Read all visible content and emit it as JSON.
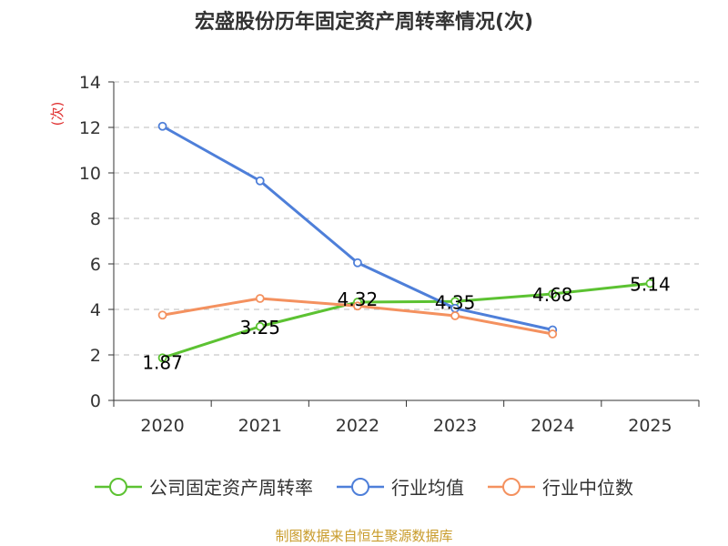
{
  "chart_data": {
    "type": "line",
    "title": "宏盛股份历年固定资产周转率情况(次)",
    "ylabel": "(次)",
    "xlabel": "",
    "categories": [
      "2020",
      "2021",
      "2022",
      "2023",
      "2024",
      "2025"
    ],
    "ylim": [
      0,
      14
    ],
    "yticks": [
      0,
      2,
      4,
      6,
      8,
      10,
      12,
      14
    ],
    "grid": true,
    "legend_position": "bottom",
    "series": [
      {
        "name": "公司固定资产周转率",
        "color": "#5cc232",
        "values": [
          1.87,
          3.25,
          4.32,
          4.35,
          4.68,
          5.14
        ],
        "labels": [
          "1.87",
          "3.25",
          "4.32",
          "4.35",
          "4.68",
          "5.14"
        ]
      },
      {
        "name": "行业均值",
        "color": "#4e7fd9",
        "values": [
          12.05,
          9.65,
          6.05,
          4.05,
          3.1,
          null
        ]
      },
      {
        "name": "行业中位数",
        "color": "#f4915f",
        "values": [
          3.75,
          4.48,
          4.15,
          3.72,
          2.92,
          null
        ]
      }
    ]
  },
  "source": "制图数据来自恒生聚源数据库",
  "colors": {
    "axis": "#333333",
    "grid": "#bbbbbb",
    "ylabel": "#e03030"
  }
}
